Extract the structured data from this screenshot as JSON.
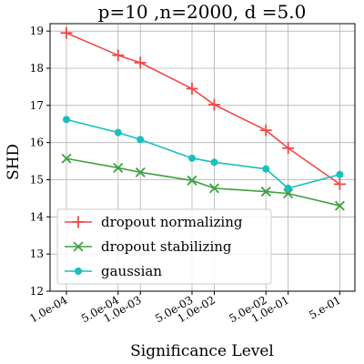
{
  "chart_data": {
    "type": "line",
    "title": "p=10 ,n=2000, d =5.0",
    "xlabel": "Significance Level",
    "ylabel": "SHD",
    "x_scale": "log",
    "x": [
      0.0001,
      0.0005,
      0.001,
      0.005,
      0.01,
      0.05,
      0.1,
      0.5
    ],
    "x_tick_labels": [
      "1.0e-04",
      "5.0e-04",
      "1.0e-03",
      "5.0e-03",
      "1.0e-02",
      "5.0e-02",
      "1.0e-01",
      "5.e-01"
    ],
    "ylim": [
      12,
      19.2
    ],
    "y_ticks": [
      12,
      13,
      14,
      15,
      16,
      17,
      18,
      19
    ],
    "grid": true,
    "legend_position": "lower-left",
    "series": [
      {
        "name": "dropout normalizing",
        "color": "#f04848",
        "marker": "plus",
        "values": [
          18.95,
          18.35,
          18.15,
          17.45,
          17.02,
          16.33,
          15.85,
          14.88
        ]
      },
      {
        "name": "dropout stabilizing",
        "color": "#3fa03f",
        "marker": "x",
        "values": [
          15.57,
          15.32,
          15.2,
          14.98,
          14.77,
          14.68,
          14.63,
          14.3
        ]
      },
      {
        "name": "gaussian",
        "color": "#17bfbf",
        "marker": "circle",
        "values": [
          16.62,
          16.27,
          16.08,
          15.58,
          15.47,
          15.29,
          14.77,
          15.14
        ]
      }
    ]
  }
}
